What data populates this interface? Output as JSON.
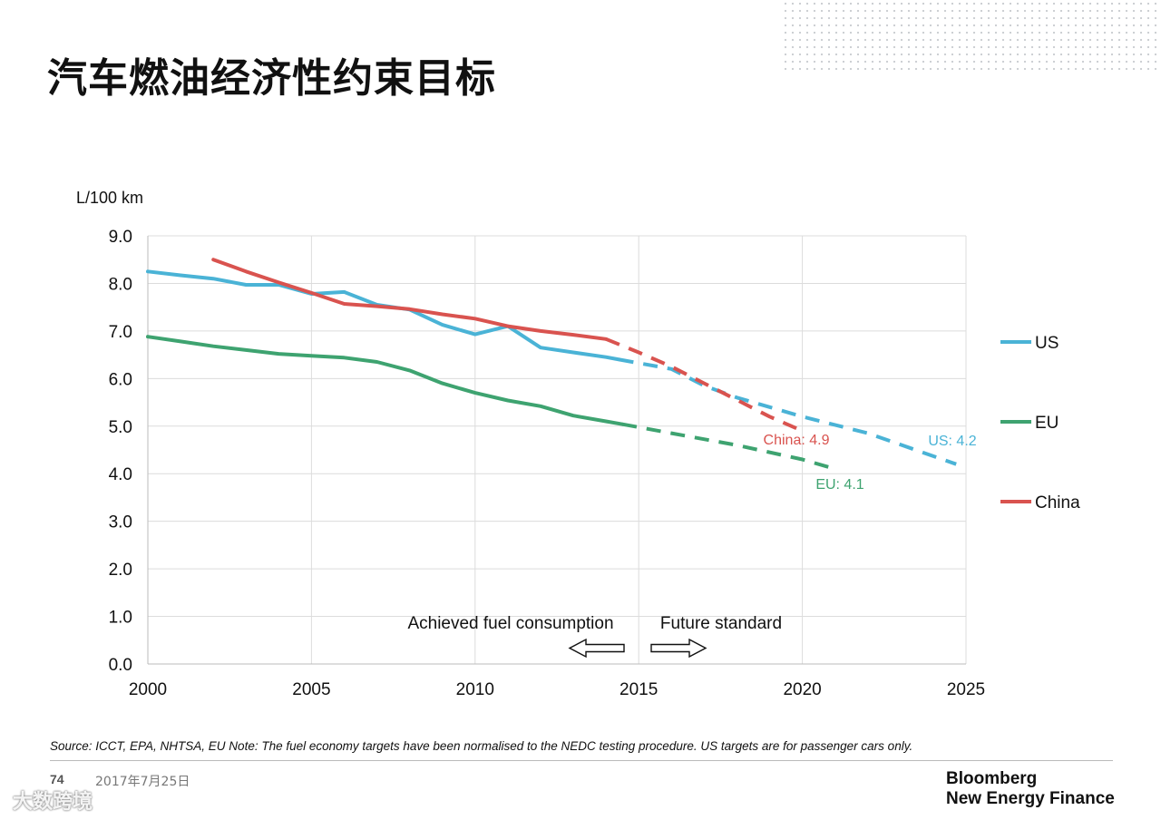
{
  "slide": {
    "title": "汽车燃油经济性约束目标",
    "source_note": "Source: ICCT, EPA, NHTSA, EU Note: The fuel economy targets have been normalised to the NEDC testing procedure. US targets are for passenger cars only.",
    "page_number": "74",
    "date": "2017年7月25日",
    "logo_line1": "Bloomberg",
    "logo_line2": "New Energy Finance",
    "watermark": "大数跨境"
  },
  "chart_data": {
    "type": "line",
    "title": "",
    "ylabel": "L/100 km",
    "xlabel": "",
    "xlim": [
      2000,
      2025
    ],
    "ylim": [
      0,
      9
    ],
    "x_ticks": [
      2000,
      2005,
      2010,
      2015,
      2020,
      2025
    ],
    "y_ticks": [
      0.0,
      1.0,
      2.0,
      3.0,
      4.0,
      5.0,
      6.0,
      7.0,
      8.0,
      9.0
    ],
    "y_tick_labels": [
      "0.0",
      "1.0",
      "2.0",
      "3.0",
      "4.0",
      "5.0",
      "6.0",
      "7.0",
      "8.0",
      "9.0"
    ],
    "grid": true,
    "legend_position": "right",
    "series": [
      {
        "name": "US",
        "color": "#4ab3d6",
        "achieved": [
          [
            2000,
            8.25
          ],
          [
            2001,
            8.17
          ],
          [
            2002,
            8.1
          ],
          [
            2003,
            7.97
          ],
          [
            2004,
            7.97
          ],
          [
            2005,
            7.78
          ],
          [
            2006,
            7.82
          ],
          [
            2007,
            7.55
          ],
          [
            2008,
            7.45
          ],
          [
            2009,
            7.13
          ],
          [
            2010,
            6.93
          ],
          [
            2011,
            7.1
          ],
          [
            2012,
            6.65
          ],
          [
            2013,
            6.55
          ],
          [
            2014,
            6.45
          ],
          [
            2014.4,
            6.4
          ]
        ],
        "target": [
          [
            2014.4,
            6.4
          ],
          [
            2016,
            6.2
          ],
          [
            2017,
            5.85
          ],
          [
            2018,
            5.6
          ],
          [
            2019,
            5.4
          ],
          [
            2020,
            5.2
          ],
          [
            2022,
            4.85
          ],
          [
            2024.7,
            4.2
          ]
        ],
        "annotation": "US: 4.2"
      },
      {
        "name": "EU",
        "color": "#3ea370",
        "achieved": [
          [
            2000,
            6.88
          ],
          [
            2001,
            6.78
          ],
          [
            2002,
            6.68
          ],
          [
            2003,
            6.6
          ],
          [
            2004,
            6.52
          ],
          [
            2005,
            6.48
          ],
          [
            2006,
            6.44
          ],
          [
            2007,
            6.35
          ],
          [
            2008,
            6.17
          ],
          [
            2009,
            5.9
          ],
          [
            2010,
            5.7
          ],
          [
            2011,
            5.54
          ],
          [
            2012,
            5.42
          ],
          [
            2013,
            5.22
          ],
          [
            2014,
            5.1
          ],
          [
            2014.5,
            5.04
          ]
        ],
        "target": [
          [
            2014.5,
            5.04
          ],
          [
            2016,
            4.85
          ],
          [
            2018,
            4.6
          ],
          [
            2020,
            4.3
          ],
          [
            2021,
            4.1
          ]
        ],
        "annotation": "EU: 4.1"
      },
      {
        "name": "China",
        "color": "#d9534f",
        "achieved": [
          [
            2002,
            8.5
          ],
          [
            2003,
            8.25
          ],
          [
            2004,
            8.02
          ],
          [
            2005,
            7.8
          ],
          [
            2006,
            7.57
          ],
          [
            2007,
            7.52
          ],
          [
            2008,
            7.46
          ],
          [
            2009,
            7.35
          ],
          [
            2010,
            7.26
          ],
          [
            2011,
            7.1
          ],
          [
            2012,
            7.0
          ],
          [
            2013,
            6.92
          ],
          [
            2014,
            6.83
          ]
        ],
        "target": [
          [
            2014,
            6.83
          ],
          [
            2015,
            6.55
          ],
          [
            2016,
            6.25
          ],
          [
            2017,
            5.9
          ],
          [
            2018,
            5.55
          ],
          [
            2019,
            5.2
          ],
          [
            2020,
            4.9
          ]
        ],
        "annotation": "China: 4.9"
      }
    ],
    "annotations": {
      "achieved_label": "Achieved fuel consumption",
      "future_label": "Future standard"
    }
  }
}
